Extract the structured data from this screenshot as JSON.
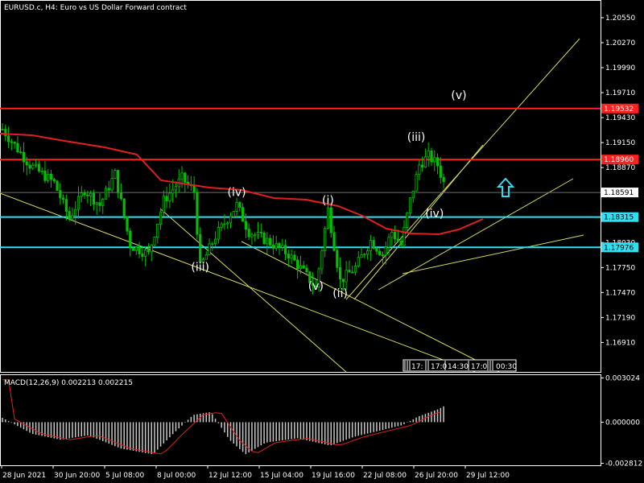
{
  "header": {
    "title": "EURUSD.c, H4:  Euro vs US Dollar Forward contract"
  },
  "price_axis": {
    "labels": [
      "1.20550",
      "1.20270",
      "1.19990",
      "1.19710",
      "1.19430",
      "1.19150",
      "1.18870",
      "1.18590",
      "1.18030",
      "1.17750",
      "1.17470",
      "1.17190",
      "1.16910"
    ],
    "values": [
      1.2055,
      1.2027,
      1.1999,
      1.1971,
      1.1943,
      1.1915,
      1.1887,
      1.1859,
      1.1803,
      1.1775,
      1.1747,
      1.1719,
      1.1691
    ],
    "range": [
      1.1658,
      1.2073
    ]
  },
  "levels": [
    {
      "label": "1.19532",
      "value": 1.19532,
      "color": "#ff2020",
      "badge_fill": "#ff2020",
      "badge_text": "#ffffff"
    },
    {
      "label": "1.18960",
      "value": 1.1896,
      "color": "#ff2020",
      "badge_fill": "#ff2020",
      "badge_text": "#ffffff"
    },
    {
      "label": "1.18591",
      "value": 1.18591,
      "color": "#707070",
      "badge_fill": "#ffffff",
      "badge_text": "#000000"
    },
    {
      "label": "1.18315",
      "value": 1.18315,
      "color": "#30e0f0",
      "badge_fill": "#30e0f0",
      "badge_text": "#000000"
    },
    {
      "label": "1.17976",
      "value": 1.17976,
      "color": "#30e0f0",
      "badge_fill": "#30e0f0",
      "badge_text": "#000000"
    }
  ],
  "waves": [
    {
      "label": "(iii)",
      "x": "12 Jul 20:00",
      "y": 1.1771
    },
    {
      "label": "(iv)",
      "x": "14 Jul 20:00",
      "y": 1.1855
    },
    {
      "label": "(v)",
      "x": "21 Jul 04:00",
      "y": 1.175
    },
    {
      "label": "(i)",
      "x": "21 Jul 20:00",
      "y": 1.1846
    },
    {
      "label": "(ii)",
      "x": "22 Jul 12:00",
      "y": 1.1742
    },
    {
      "label": "(iii)",
      "x": "28 Jul 16:00",
      "y": 1.1917
    },
    {
      "label": "(iv)",
      "x": "29 Jul 16:00",
      "y": 1.1831
    },
    {
      "label": "(v)",
      "x": "1 Aug 04:00",
      "y": 1.1964
    }
  ],
  "time_axis": {
    "labels": [
      "28 Jun 2021",
      "30 Jun 20:00",
      "5 Jul 08:00",
      "8 Jul 00:00",
      "12 Jul 12:00",
      "15 Jul 04:00",
      "19 Jul 16:00",
      "22 Jul 08:00",
      "26 Jul 20:00",
      "29 Jul 12:00"
    ]
  },
  "session_strip": {
    "labels": [
      "17:",
      "17:0",
      "14:30",
      "17:0",
      "00:30"
    ]
  },
  "macd": {
    "title": "MACD(12,26,9) 0.002213 0.002215",
    "axis_labels": [
      "0.003024",
      "0.000000",
      "-0.002812"
    ],
    "axis_values": [
      0.003024,
      0.0,
      -0.002812
    ],
    "range": [
      -0.00295,
      0.00322
    ]
  },
  "colors": {
    "background": "#000000",
    "bull": "#00c000",
    "ma": "#e02020",
    "trendline": "#d8d860",
    "arrow": "#30d8f0",
    "macd_hist": "#c8c8c8",
    "macd_signal": "#e02020",
    "grid_frame": "#ffffff"
  },
  "icons": {
    "arrow": "up-arrow-icon"
  }
}
